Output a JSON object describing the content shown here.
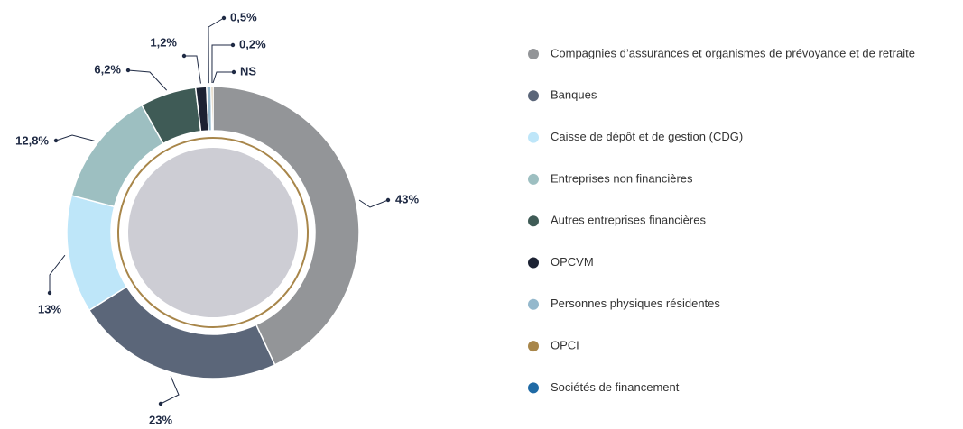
{
  "chart_data": {
    "type": "donut",
    "categories": [
      "Compagnies d’assurances et organismes de prévoyance et de retraite",
      "Banques",
      "Caisse de dépôt et de gestion (CDG)",
      "Entreprises non financières",
      "Autres entreprises financières",
      "OPCVM",
      "Personnes physiques résidentes",
      "OPCI",
      "Sociétés de financement"
    ],
    "values": [
      43,
      23,
      13,
      12.8,
      6.2,
      1.2,
      0.5,
      0.2,
      null
    ],
    "value_labels": [
      "43%",
      "23%",
      "13%",
      "12,8%",
      "6,2%",
      "1,2%",
      "0,5%",
      "0,2%",
      "NS"
    ],
    "colors": [
      "#939598",
      "#5b6679",
      "#bee6f9",
      "#9dbfc1",
      "#3f5b56",
      "#1c2233",
      "#94b8cc",
      "#a8864a",
      "#1f6aa5"
    ],
    "legend": "right"
  }
}
